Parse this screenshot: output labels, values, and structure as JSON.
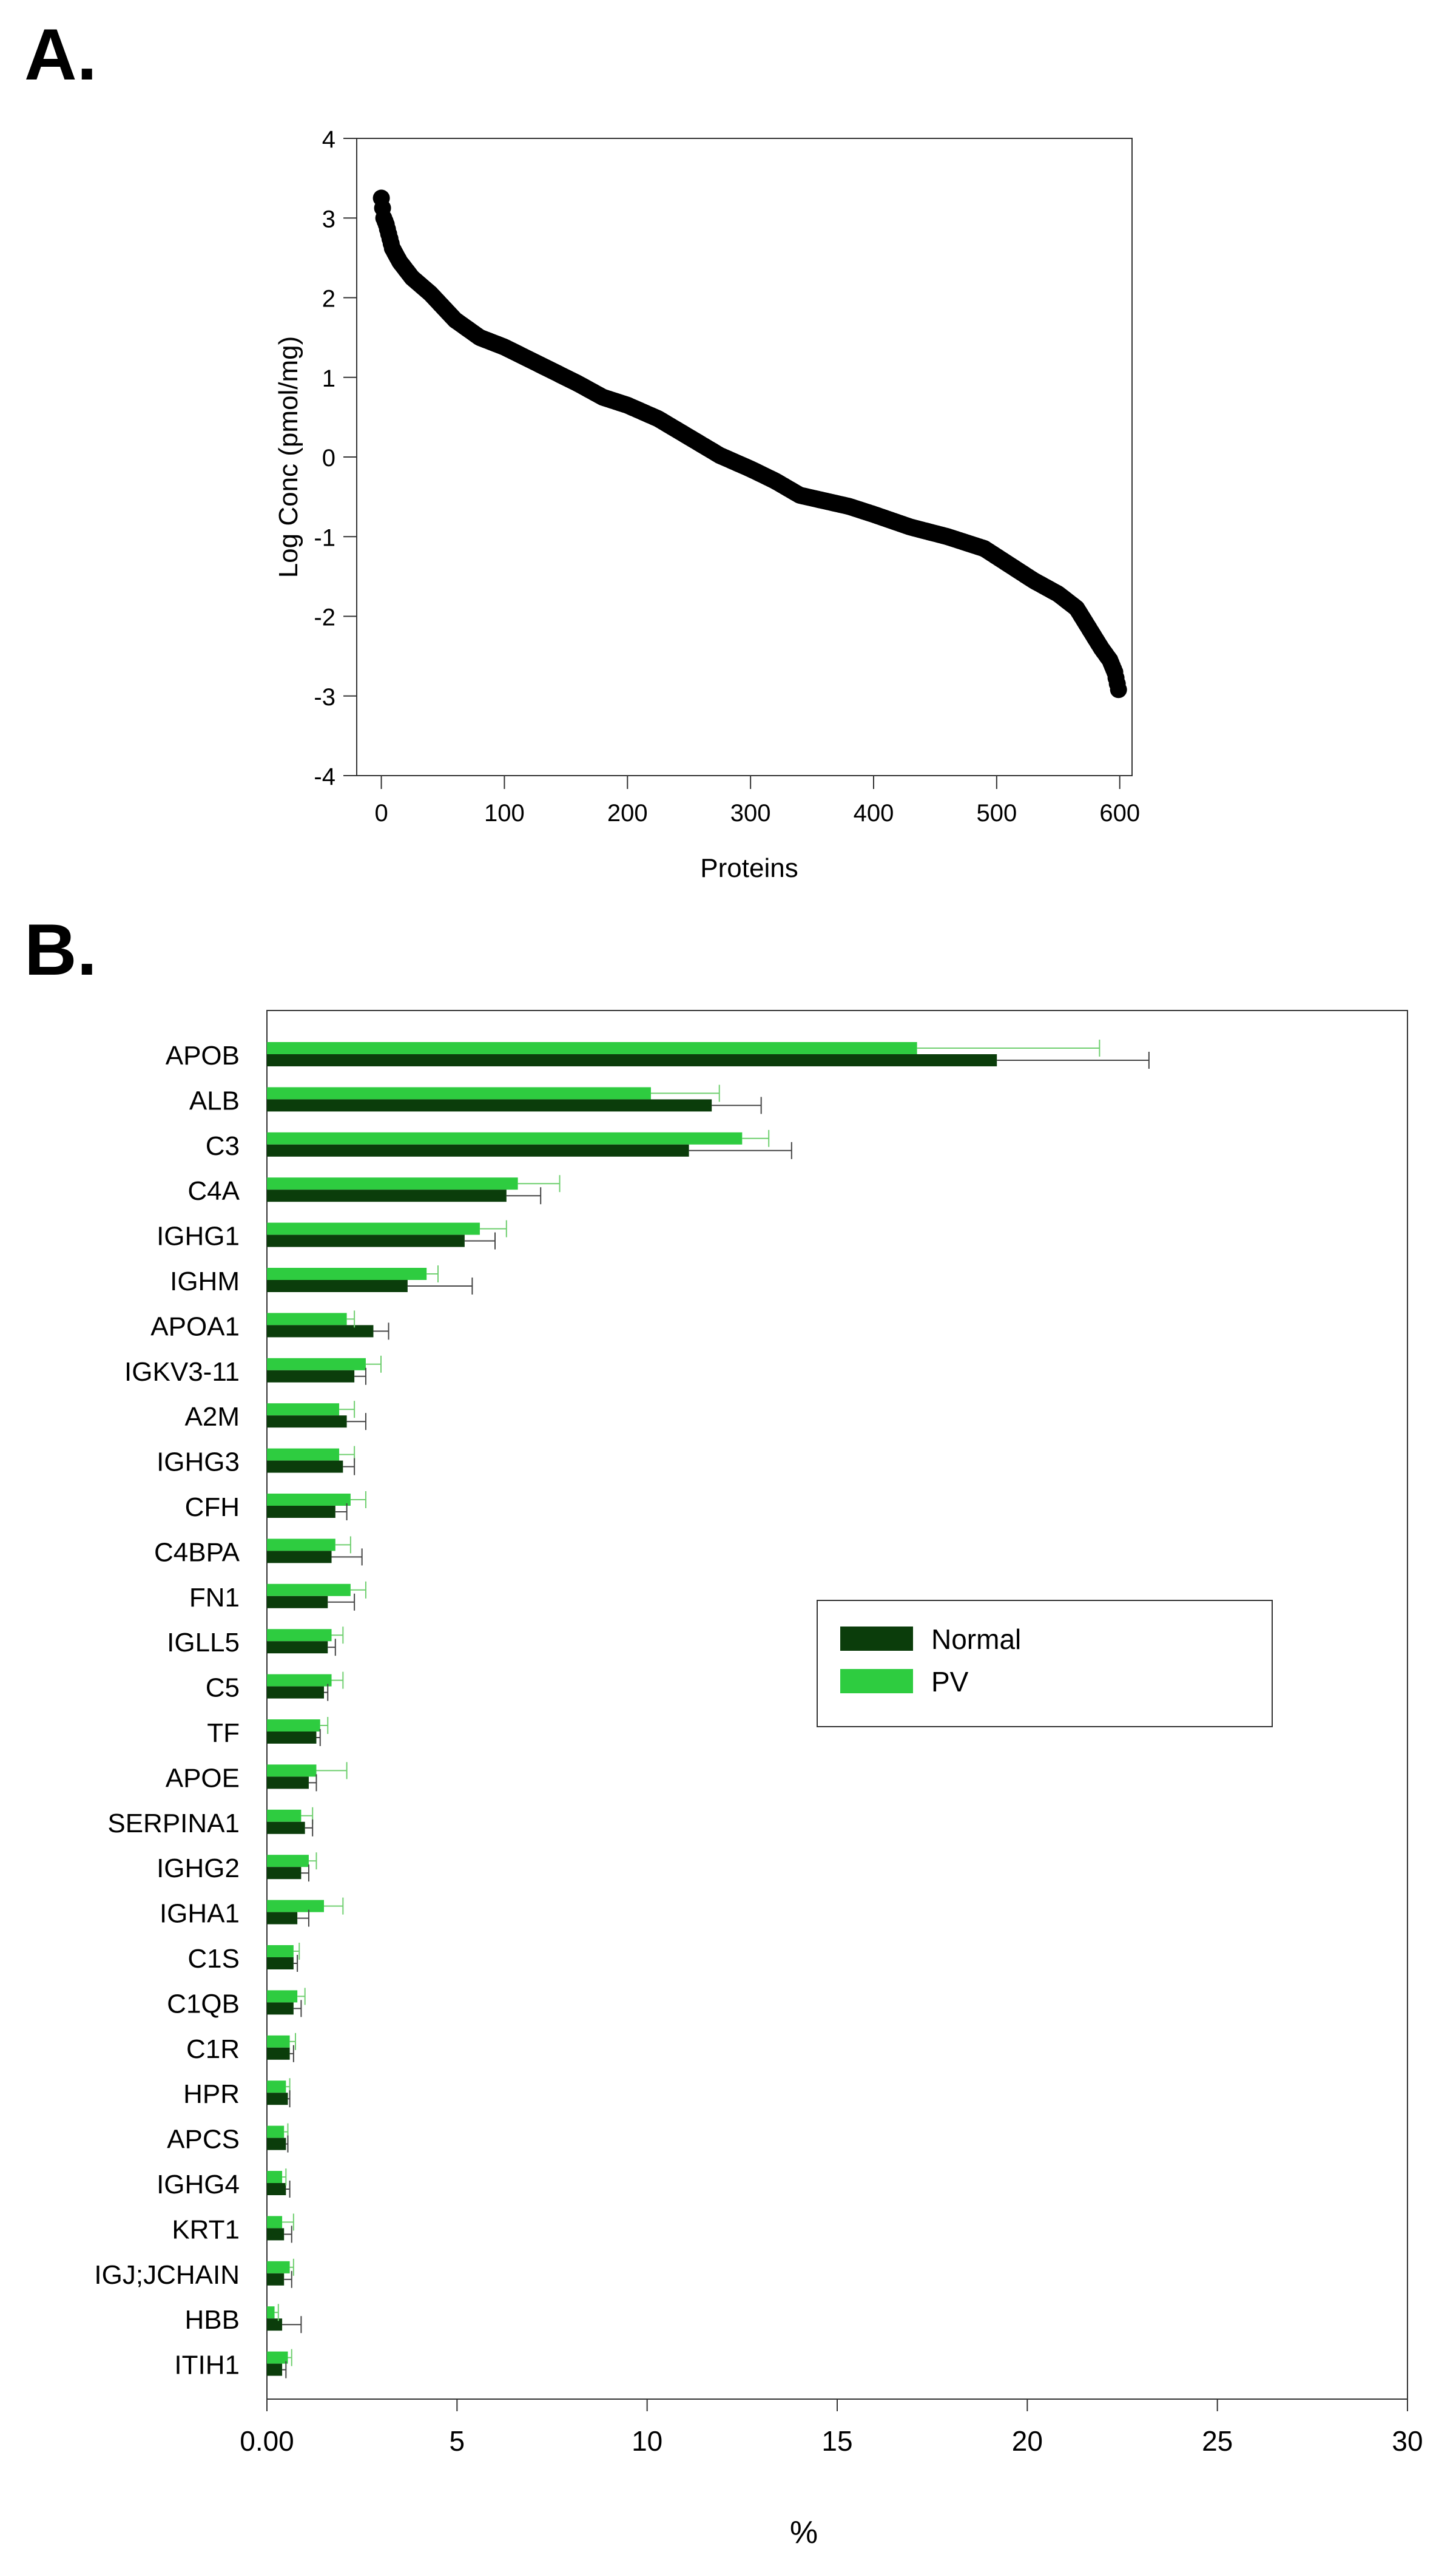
{
  "panels": {
    "a_label": "A.",
    "b_label": "B."
  },
  "chart_data": [
    {
      "type": "scatter",
      "title": "",
      "xlabel": "Proteins",
      "ylabel": "Log Conc (pmol/mg)",
      "xlim": [
        -20,
        610
      ],
      "ylim": [
        -4,
        4
      ],
      "xticks": [
        0,
        100,
        200,
        300,
        400,
        500,
        600
      ],
      "yticks": [
        -4,
        -3,
        -2,
        -1,
        0,
        1,
        2,
        3,
        4
      ],
      "curve_knots": [
        [
          0,
          3.25
        ],
        [
          2,
          3.0
        ],
        [
          4,
          2.92
        ],
        [
          6,
          2.8
        ],
        [
          9,
          2.62
        ],
        [
          15,
          2.45
        ],
        [
          25,
          2.25
        ],
        [
          40,
          2.05
        ],
        [
          60,
          1.72
        ],
        [
          80,
          1.5
        ],
        [
          100,
          1.38
        ],
        [
          130,
          1.15
        ],
        [
          160,
          0.92
        ],
        [
          180,
          0.75
        ],
        [
          200,
          0.65
        ],
        [
          225,
          0.48
        ],
        [
          250,
          0.25
        ],
        [
          275,
          0.02
        ],
        [
          300,
          -0.15
        ],
        [
          320,
          -0.3
        ],
        [
          340,
          -0.48
        ],
        [
          360,
          -0.55
        ],
        [
          380,
          -0.62
        ],
        [
          400,
          -0.72
        ],
        [
          430,
          -0.88
        ],
        [
          460,
          -1.0
        ],
        [
          490,
          -1.15
        ],
        [
          510,
          -1.35
        ],
        [
          530,
          -1.55
        ],
        [
          550,
          -1.72
        ],
        [
          565,
          -1.9
        ],
        [
          575,
          -2.15
        ],
        [
          585,
          -2.4
        ],
        [
          592,
          -2.55
        ],
        [
          596,
          -2.7
        ],
        [
          599,
          -2.92
        ]
      ],
      "n_points": 600
    },
    {
      "type": "bar",
      "orientation": "horizontal",
      "xlabel": "%",
      "ylabel": "",
      "xlim": [
        0,
        30
      ],
      "xtick_labels": [
        "0.00",
        "5",
        "10",
        "15",
        "20",
        "25",
        "30"
      ],
      "xticks": [
        0,
        5,
        10,
        15,
        20,
        25,
        30
      ],
      "legend": {
        "position": "center-right",
        "entries": [
          "Normal",
          "PV"
        ]
      },
      "colors": {
        "Normal": "#0b3d0b",
        "PV": "#2ecc40"
      },
      "categories": [
        "APOB",
        "ALB",
        "C3",
        "C4A",
        "IGHG1",
        "IGHM",
        "APOA1",
        "IGKV3-11",
        "A2M",
        "IGHG3",
        "CFH",
        "C4BPA",
        "FN1",
        "IGLL5",
        "C5",
        "TF",
        "APOE",
        "SERPINA1",
        "IGHG2",
        "IGHA1",
        "C1S",
        "C1QB",
        "C1R",
        "HPR",
        "APCS",
        "IGHG4",
        "KRT1",
        "IGJ;JCHAIN",
        "HBB",
        "ITIH1"
      ],
      "series": [
        {
          "name": "Normal",
          "values": [
            19.2,
            11.7,
            11.1,
            6.3,
            5.2,
            3.7,
            2.8,
            2.3,
            2.1,
            2.0,
            1.8,
            1.7,
            1.6,
            1.6,
            1.5,
            1.3,
            1.1,
            1.0,
            0.9,
            0.8,
            0.7,
            0.7,
            0.6,
            0.55,
            0.5,
            0.5,
            0.45,
            0.45,
            0.4,
            0.4
          ],
          "errors": [
            4.0,
            1.3,
            2.7,
            0.9,
            0.8,
            1.7,
            0.4,
            0.3,
            0.5,
            0.3,
            0.3,
            0.8,
            0.7,
            0.2,
            0.1,
            0.1,
            0.2,
            0.2,
            0.2,
            0.3,
            0.1,
            0.2,
            0.1,
            0.05,
            0.05,
            0.1,
            0.2,
            0.2,
            0.5,
            0.1
          ]
        },
        {
          "name": "PV",
          "values": [
            17.1,
            10.1,
            12.5,
            6.6,
            5.6,
            4.2,
            2.1,
            2.6,
            1.9,
            1.9,
            2.2,
            1.8,
            2.2,
            1.7,
            1.7,
            1.4,
            1.3,
            0.9,
            1.1,
            1.5,
            0.7,
            0.8,
            0.6,
            0.5,
            0.45,
            0.4,
            0.4,
            0.6,
            0.2,
            0.55
          ],
          "errors": [
            4.8,
            1.8,
            0.7,
            1.1,
            0.7,
            0.3,
            0.2,
            0.4,
            0.4,
            0.4,
            0.4,
            0.4,
            0.4,
            0.3,
            0.3,
            0.2,
            0.8,
            0.3,
            0.2,
            0.5,
            0.15,
            0.2,
            0.15,
            0.1,
            0.1,
            0.1,
            0.3,
            0.1,
            0.1,
            0.1
          ]
        }
      ]
    }
  ]
}
